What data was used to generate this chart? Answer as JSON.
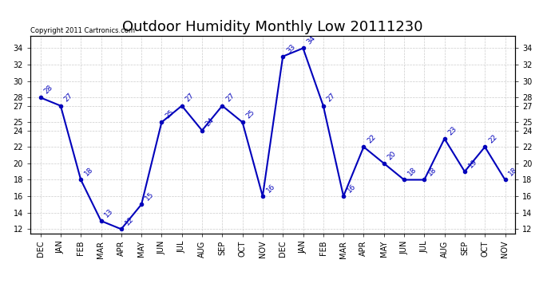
{
  "title": "Outdoor Humidity Monthly Low 20111230",
  "copyright": "Copyright 2011 Cartronics.com",
  "x_labels": [
    "DEC",
    "JAN",
    "FEB",
    "MAR",
    "APR",
    "MAY",
    "JUN",
    "JUL",
    "AUG",
    "SEP",
    "OCT",
    "NOV",
    "DEC",
    "JAN",
    "FEB",
    "MAR",
    "APR",
    "MAY",
    "JUN",
    "JUL",
    "AUG",
    "SEP",
    "OCT",
    "NOV"
  ],
  "y_values": [
    28,
    27,
    18,
    13,
    12,
    15,
    25,
    27,
    24,
    27,
    25,
    16,
    33,
    34,
    27,
    16,
    22,
    20,
    18,
    18,
    23,
    19,
    22,
    18
  ],
  "y_ticks": [
    12,
    14,
    16,
    18,
    20,
    22,
    24,
    25,
    27,
    28,
    30,
    32,
    34
  ],
  "ylim": [
    11.5,
    35.5
  ],
  "line_color": "#0000bb",
  "grid_color": "#cccccc",
  "background_color": "#ffffff",
  "title_fontsize": 13,
  "tick_fontsize": 7,
  "annot_fontsize": 6.5
}
